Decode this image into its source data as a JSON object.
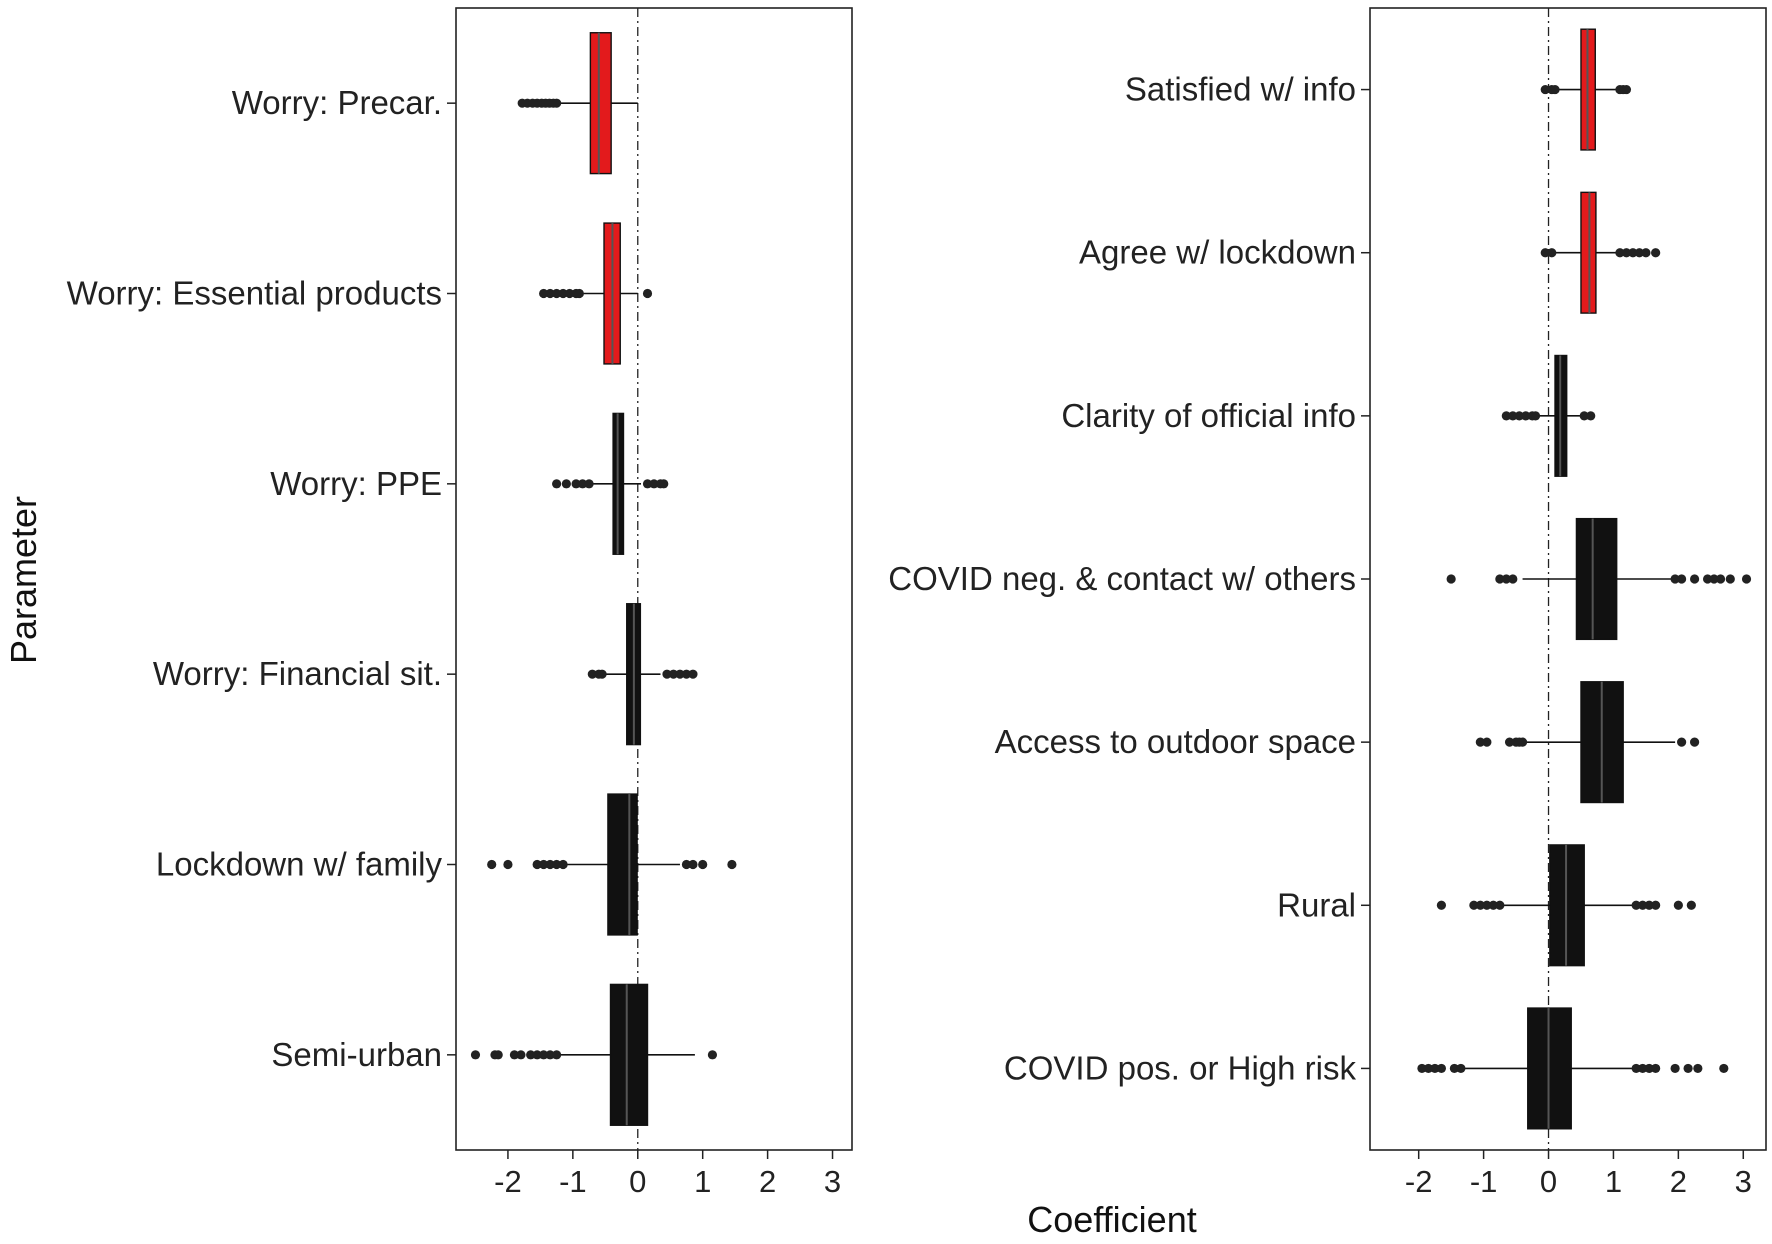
{
  "figure": {
    "ylabel": "Parameter",
    "xlabel": "Coefficient"
  },
  "chart_data": [
    {
      "type": "boxplot",
      "orientation": "horizontal",
      "xlim": [
        -2.8,
        3.3
      ],
      "xticks": [
        -2,
        -1,
        0,
        1,
        2,
        3
      ],
      "xtick_labels": [
        "-2",
        "-1",
        "0",
        "1",
        "2",
        "3"
      ],
      "reference_line": 0,
      "colors": {
        "highlight": "#e31a1c",
        "default": "#111111",
        "median": "#555555"
      },
      "categories": [
        "Worry: Precar.",
        "Worry: Essential products",
        "Worry: PPE",
        "Worry: Financial sit.",
        "Lockdown w/ family",
        "Semi-urban"
      ],
      "boxes": [
        {
          "label": "Worry: Precar.",
          "q1": -0.73,
          "median": -0.6,
          "q3": -0.41,
          "whisker_low": -1.2,
          "whisker_high": 0.0,
          "outliers": [
            -1.78,
            -1.7,
            -1.62,
            -1.55,
            -1.48,
            -1.42,
            -1.36,
            -1.3,
            -1.25
          ],
          "highlight": true
        },
        {
          "label": "Worry: Essential products",
          "q1": -0.52,
          "median": -0.39,
          "q3": -0.27,
          "whisker_low": -0.85,
          "whisker_high": 0.0,
          "outliers": [
            -1.45,
            -1.35,
            -1.25,
            -1.15,
            -1.05,
            -0.95,
            -0.9,
            0.15
          ],
          "highlight": true
        },
        {
          "label": "Worry: PPE",
          "q1": -0.38,
          "median": -0.31,
          "q3": -0.22,
          "whisker_low": -0.7,
          "whisker_high": 0.05,
          "outliers": [
            -1.25,
            -1.1,
            -0.95,
            -0.85,
            -0.75,
            0.15,
            0.25,
            0.35,
            0.4
          ],
          "highlight": false
        },
        {
          "label": "Worry: Financial sit.",
          "q1": -0.17,
          "median": -0.06,
          "q3": 0.04,
          "whisker_low": -0.5,
          "whisker_high": 0.35,
          "outliers": [
            -0.7,
            -0.6,
            -0.55,
            0.45,
            0.55,
            0.65,
            0.75,
            0.85
          ],
          "highlight": false
        },
        {
          "label": "Lockdown w/ family",
          "q1": -0.46,
          "median": -0.13,
          "q3": -0.01,
          "whisker_low": -1.1,
          "whisker_high": 0.65,
          "outliers": [
            -2.25,
            -2.0,
            -1.55,
            -1.45,
            -1.35,
            -1.25,
            -1.15,
            0.75,
            0.85,
            1.0,
            1.45
          ],
          "highlight": false
        },
        {
          "label": "Semi-urban",
          "q1": -0.42,
          "median": -0.17,
          "q3": 0.15,
          "whisker_low": -1.2,
          "whisker_high": 0.88,
          "outliers": [
            -2.5,
            -2.2,
            -2.15,
            -1.9,
            -1.8,
            -1.65,
            -1.55,
            -1.45,
            -1.35,
            -1.25,
            1.15
          ],
          "highlight": false
        }
      ]
    },
    {
      "type": "boxplot",
      "orientation": "horizontal",
      "xlim": [
        -2.75,
        3.35
      ],
      "xticks": [
        -2,
        -1,
        0,
        1,
        2,
        3
      ],
      "xtick_labels": [
        "-2",
        "-1",
        "0",
        "1",
        "2",
        "3"
      ],
      "reference_line": 0,
      "colors": {
        "highlight": "#e31a1c",
        "default": "#111111",
        "median": "#555555"
      },
      "categories": [
        "Satisfied w/ info",
        "Agree w/ lockdown",
        "Clarity of official info",
        "COVID neg. & contact w/ others",
        "Access to outdoor space",
        "Rural",
        "COVID pos. or High risk"
      ],
      "boxes": [
        {
          "label": "Satisfied w/ info",
          "q1": 0.5,
          "median": 0.6,
          "q3": 0.72,
          "whisker_low": 0.15,
          "whisker_high": 1.05,
          "outliers": [
            -0.05,
            0.05,
            0.1,
            1.1,
            1.15,
            1.2
          ],
          "highlight": true
        },
        {
          "label": "Agree w/ lockdown",
          "q1": 0.5,
          "median": 0.63,
          "q3": 0.73,
          "whisker_low": 0.1,
          "whisker_high": 1.05,
          "outliers": [
            -0.05,
            0.05,
            1.1,
            1.2,
            1.3,
            1.4,
            1.5,
            1.65
          ],
          "highlight": true
        },
        {
          "label": "Clarity of official info",
          "q1": 0.1,
          "median": 0.18,
          "q3": 0.28,
          "whisker_low": -0.15,
          "whisker_high": 0.5,
          "outliers": [
            -0.65,
            -0.55,
            -0.45,
            -0.35,
            -0.25,
            -0.2,
            0.55,
            0.65
          ],
          "highlight": false
        },
        {
          "label": "COVID neg. & contact w/ others",
          "q1": 0.43,
          "median": 0.68,
          "q3": 1.05,
          "whisker_low": -0.4,
          "whisker_high": 1.9,
          "outliers": [
            -1.5,
            -0.75,
            -0.65,
            -0.55,
            1.95,
            2.05,
            2.25,
            2.45,
            2.55,
            2.65,
            2.8,
            3.05
          ],
          "highlight": false
        },
        {
          "label": "Access to outdoor space",
          "q1": 0.5,
          "median": 0.82,
          "q3": 1.15,
          "whisker_low": -0.35,
          "whisker_high": 1.95,
          "outliers": [
            -1.05,
            -0.95,
            -0.6,
            -0.5,
            -0.45,
            -0.4,
            2.05,
            2.25
          ],
          "highlight": false
        },
        {
          "label": "Rural",
          "q1": 0.02,
          "median": 0.27,
          "q3": 0.55,
          "whisker_low": -0.7,
          "whisker_high": 1.3,
          "outliers": [
            -1.65,
            -1.15,
            -1.05,
            -0.95,
            -0.85,
            -0.75,
            1.35,
            1.45,
            1.55,
            1.65,
            2.0,
            2.2
          ],
          "highlight": false
        },
        {
          "label": "COVID pos. or High risk",
          "q1": -0.32,
          "median": 0.0,
          "q3": 0.35,
          "whisker_low": -1.3,
          "whisker_high": 1.3,
          "outliers": [
            -1.95,
            -1.85,
            -1.75,
            -1.65,
            -1.45,
            -1.35,
            1.35,
            1.45,
            1.55,
            1.65,
            1.95,
            2.15,
            2.3,
            2.7
          ],
          "highlight": false
        }
      ]
    }
  ]
}
